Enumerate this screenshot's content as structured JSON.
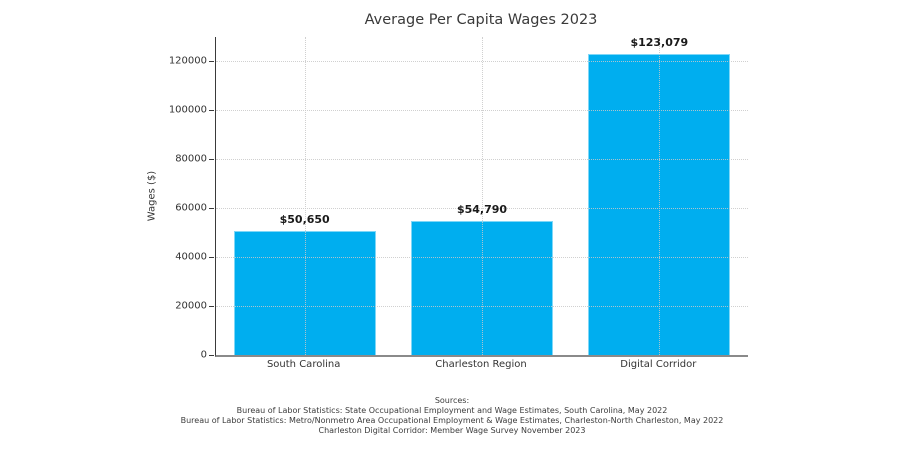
{
  "chart_data": {
    "type": "bar",
    "title": "Average Per Capita Wages 2023",
    "xlabel": "",
    "ylabel": "Wages ($)",
    "categories": [
      "South Carolina",
      "Charleston Region",
      "Digital Corridor"
    ],
    "values": [
      50650,
      54790,
      123079
    ],
    "value_labels": [
      "$50,650",
      "$54,790",
      "$123,079"
    ],
    "ylim": [
      0,
      130000
    ],
    "yticks": [
      0,
      20000,
      40000,
      60000,
      80000,
      100000,
      120000
    ],
    "ytick_labels": [
      "0",
      "20000",
      "40000",
      "60000",
      "80000",
      "100000",
      "120000"
    ],
    "grid": "dotted horizontal and vertical gridlines drawn over bars",
    "legend": "none",
    "bar_width_fraction": 0.8,
    "colors": {
      "bar_fill": "#00AEEF",
      "bar_edge": "#7fd7f7",
      "gridline": "#c8c8c8",
      "left_spine": "#3a3a3a",
      "bottom_spine": "#8a8a8a",
      "text": "#333333"
    }
  },
  "sources": {
    "heading": "Sources:",
    "lines": [
      "Bureau of Labor Statistics: State Occupational Employment and Wage Estimates, South Carolina, May 2022",
      "Bureau of Labor Statistics: Metro/Nonmetro Area Occupational Employment & Wage Estimates, Charleston-North Charleston, May 2022",
      "Charleston Digital Corridor: Member Wage Survey November 2023"
    ]
  }
}
